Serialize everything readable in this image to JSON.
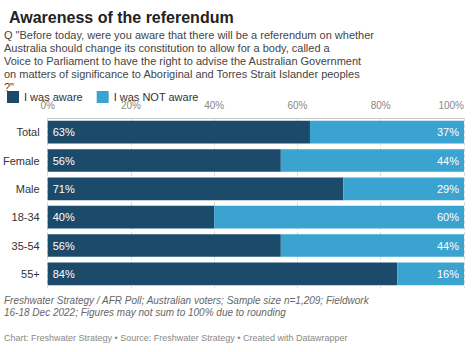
{
  "chart_data": {
    "type": "bar",
    "title": "Awareness of the referendum",
    "subtitle": "Q \"Before today, were you aware that there will be a referendum on whether Australia should change its constitution to allow for a body, called a Voice to Parliament to have the right to advise the Australian Government on matters of significance to Aboriginal and Torres Strait Islander peoples?\"",
    "categories": [
      "Total",
      "Female",
      "Male",
      "18-34",
      "35-54",
      "55+"
    ],
    "series": [
      {
        "name": "I was aware",
        "color": "#1b4a6b",
        "values": [
          63,
          56,
          71,
          40,
          56,
          84
        ],
        "value_labels": [
          "63%",
          "56%",
          "71%",
          "40%",
          "56%",
          "84%"
        ]
      },
      {
        "name": "I was NOT aware",
        "color": "#3aa3cf",
        "values": [
          37,
          44,
          29,
          60,
          44,
          16
        ],
        "value_labels": [
          "37%",
          "44%",
          "29%",
          "60%",
          "44%",
          "16%"
        ]
      }
    ],
    "xlim": [
      0,
      100
    ],
    "xticks": [
      {
        "value": 0,
        "label": "0%"
      },
      {
        "value": 20,
        "label": "20%"
      },
      {
        "value": 40,
        "label": "40%"
      },
      {
        "value": 60,
        "label": "60%"
      },
      {
        "value": 80,
        "label": "80%"
      },
      {
        "value": 100,
        "label": "100%"
      }
    ],
    "orientation": "horizontal",
    "stacked": true,
    "data_labels": true,
    "grid": true,
    "legend": "top-left",
    "notes": "Freshwater Strategy / AFR Poll; Australian voters; Sample size n=1,209; Fieldwork 16-18 Dec 2022; Figures may not sum to 100% due to rounding",
    "credit": "Chart: Freshwater Strategy • Source: Freshwater Strategy • Created with Datawrapper"
  }
}
